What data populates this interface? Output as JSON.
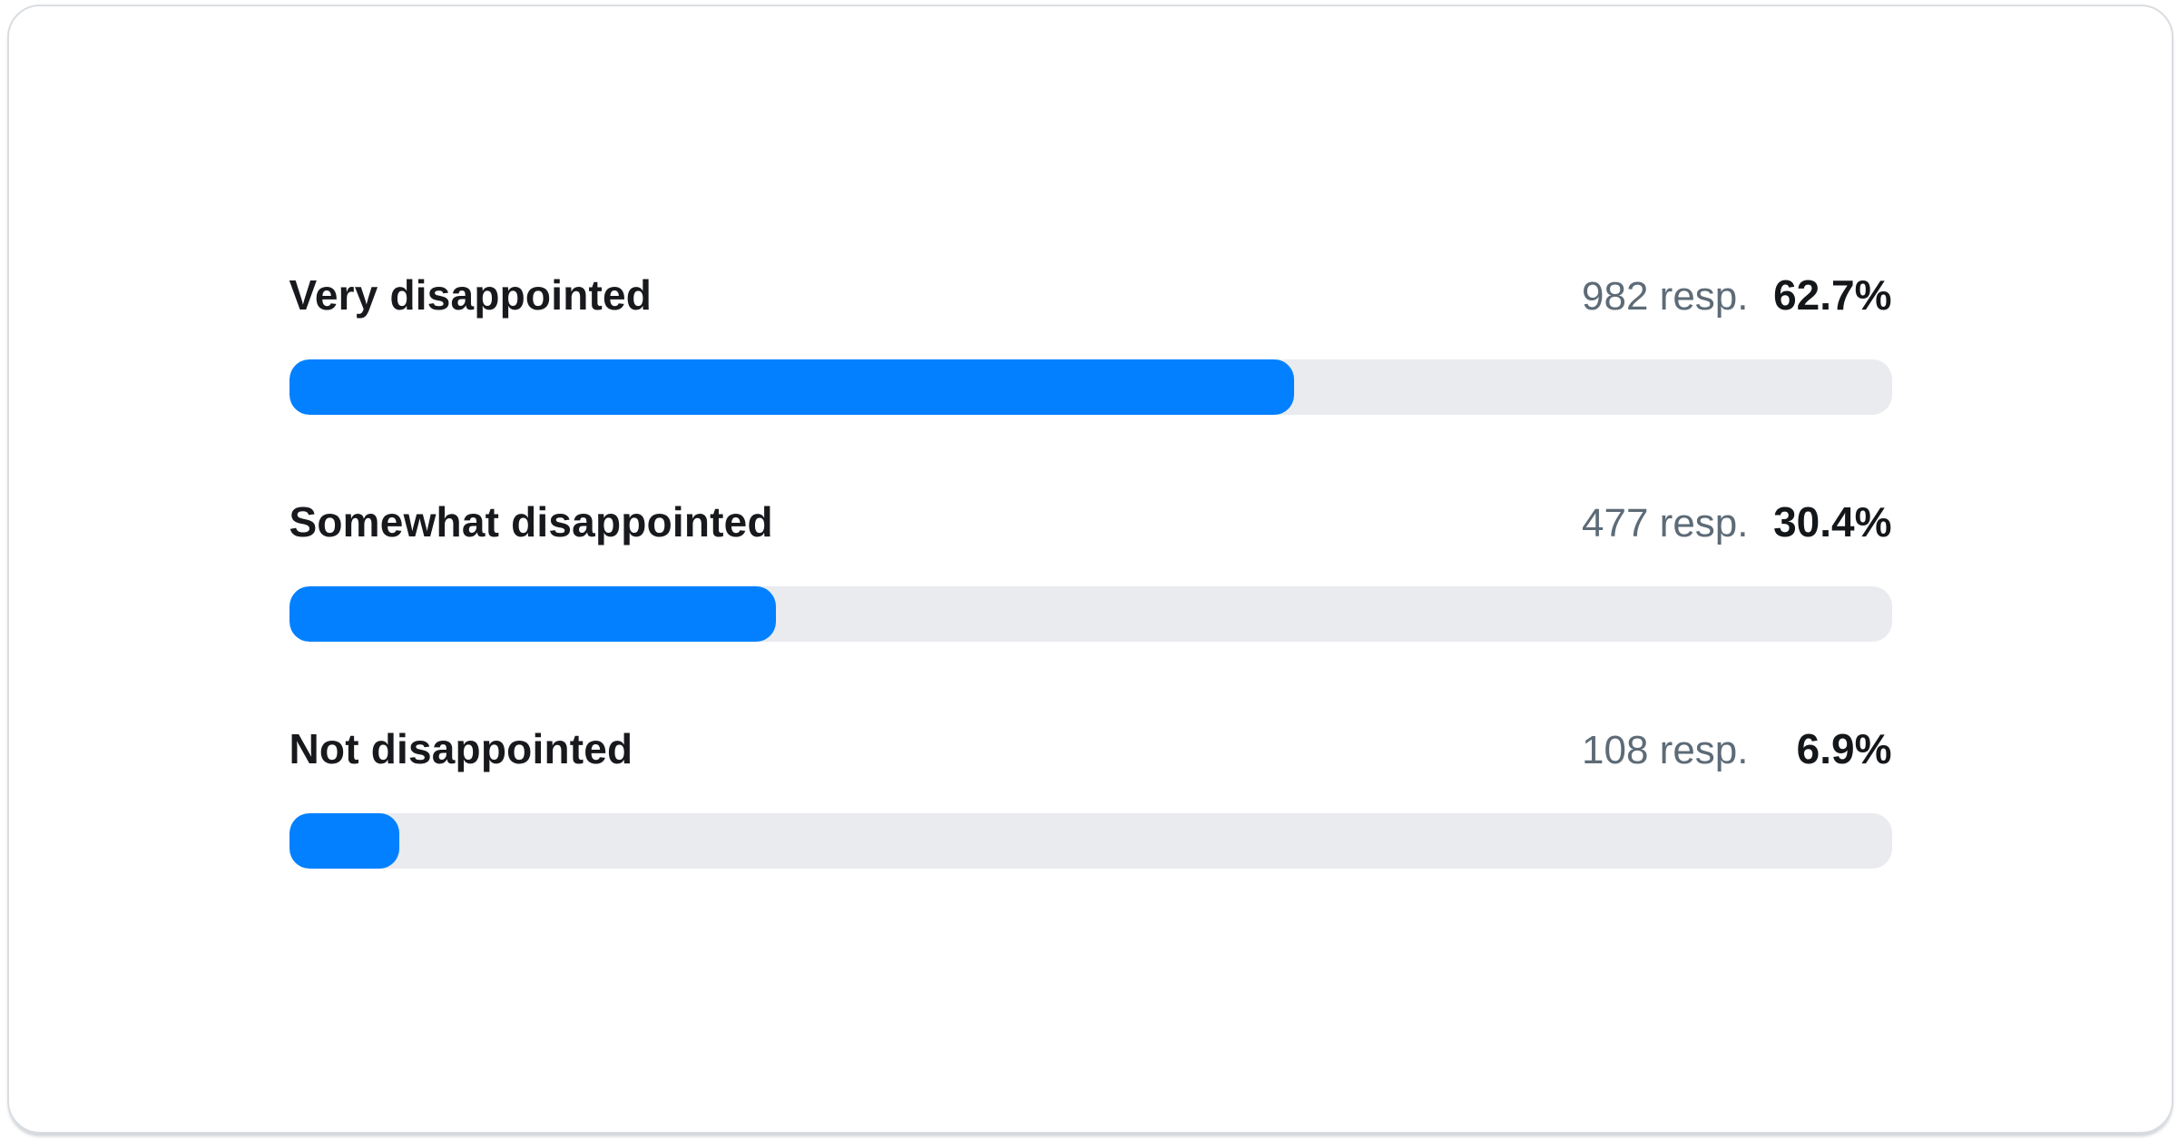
{
  "chart_data": {
    "type": "bar",
    "orientation": "horizontal",
    "title": "",
    "categories": [
      "Very disappointed",
      "Somewhat disappointed",
      "Not disappointed"
    ],
    "values": [
      62.7,
      30.4,
      6.9
    ],
    "value_unit": "%",
    "responses": [
      982,
      477,
      108
    ],
    "xlim": [
      0,
      100
    ],
    "grid": false,
    "legend": "none",
    "bar_color": "#0280ff",
    "track_color": "#e9ebef"
  },
  "rows": [
    {
      "label": "Very disappointed",
      "responses": "982 resp.",
      "percent": "62.7%",
      "bar_width": "62.7%"
    },
    {
      "label": "Somewhat disappointed",
      "responses": "477 resp.",
      "percent": "30.4%",
      "bar_width": "30.4%"
    },
    {
      "label": "Not disappointed",
      "responses": "108 resp.",
      "percent": "6.9%",
      "bar_width": "6.9%"
    }
  ],
  "colors": {
    "bar_fill": "#0280ff",
    "bar_track": "#e9ebef",
    "label_text": "#17191d",
    "muted_text": "#5d6b77",
    "percent_text": "#14171a",
    "card_border": "#d9dde1",
    "card_background": "#ffffff"
  }
}
